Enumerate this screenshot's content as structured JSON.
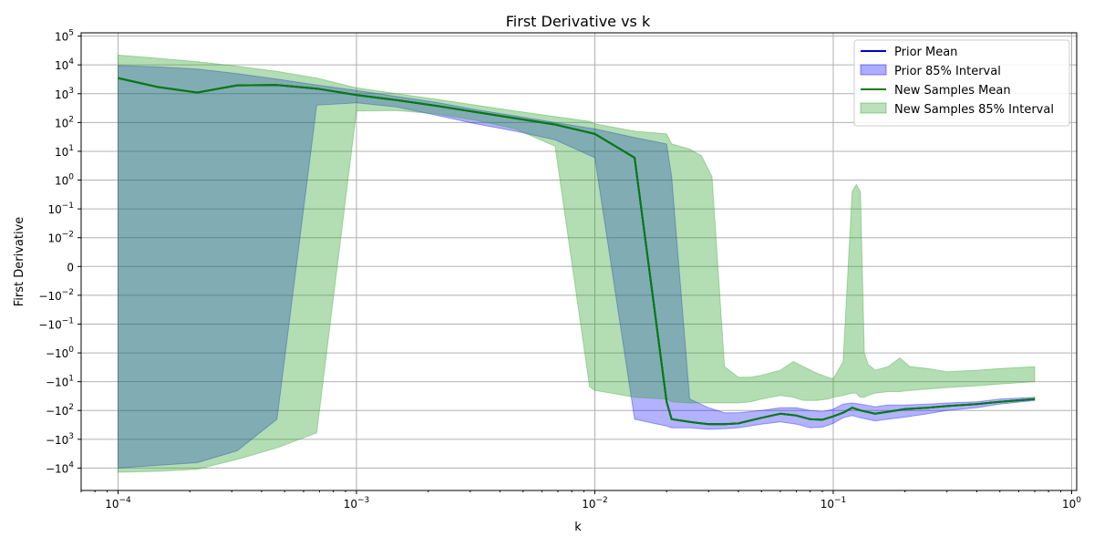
{
  "chart_data": {
    "type": "area",
    "title": "First Derivative vs k",
    "xlabel": "k",
    "ylabel": "First Derivative",
    "xscale": "log",
    "yscale": "symlog",
    "symlog_linthresh": 0.01,
    "xlim": [
      7e-05,
      1.05
    ],
    "ylim": [
      -60000,
      130000
    ],
    "grid": true,
    "legend_position": "top-right",
    "x_ticks": [
      {
        "value": 0.0001,
        "base": "10",
        "exp": "−4"
      },
      {
        "value": 0.001,
        "base": "10",
        "exp": "−3"
      },
      {
        "value": 0.01,
        "base": "10",
        "exp": "−2"
      },
      {
        "value": 0.1,
        "base": "10",
        "exp": "−1"
      },
      {
        "value": 1,
        "base": "10",
        "exp": "0"
      }
    ],
    "y_ticks": [
      {
        "value": 100000,
        "base": "10",
        "exp": "5"
      },
      {
        "value": 10000,
        "base": "10",
        "exp": "4"
      },
      {
        "value": 1000,
        "base": "10",
        "exp": "3"
      },
      {
        "value": 100,
        "base": "10",
        "exp": "2"
      },
      {
        "value": 10,
        "base": "10",
        "exp": "1"
      },
      {
        "value": 1,
        "base": "10",
        "exp": "0"
      },
      {
        "value": 0.1,
        "base": "10",
        "exp": "−1"
      },
      {
        "value": 0.01,
        "base": "10",
        "exp": "−2"
      },
      {
        "value": 0,
        "base": "0",
        "exp": ""
      },
      {
        "value": -0.01,
        "base": "−10",
        "exp": "−2"
      },
      {
        "value": -0.1,
        "base": "−10",
        "exp": "−1"
      },
      {
        "value": -1,
        "base": "−10",
        "exp": "0"
      },
      {
        "value": -10,
        "base": "−10",
        "exp": "1"
      },
      {
        "value": -100,
        "base": "−10",
        "exp": "2"
      },
      {
        "value": -1000,
        "base": "−10",
        "exp": "3"
      },
      {
        "value": -10000,
        "base": "−10",
        "exp": "4"
      }
    ],
    "colors": {
      "prior_line": "#0000cc",
      "prior_fill": "#0000ff",
      "new_line": "#008000",
      "new_fill": "#2ca02c",
      "grid": "#b0b0b0"
    },
    "series": [
      {
        "name": "Prior Mean",
        "kind": "line",
        "color": "#0000cc",
        "x": [
          0.0001,
          0.000147,
          0.000215,
          0.000316,
          0.000464,
          0.000681,
          0.001,
          0.001468,
          0.002154,
          0.003162,
          0.004642,
          0.006813,
          0.01,
          0.01468,
          0.02,
          0.021,
          0.025,
          0.03,
          0.035,
          0.04,
          0.05,
          0.06,
          0.07,
          0.08,
          0.09,
          0.1,
          0.11,
          0.12,
          0.13,
          0.15,
          0.17,
          0.2,
          0.25,
          0.3,
          0.4,
          0.5,
          0.7
        ],
        "y": [
          3500,
          1700,
          1100,
          1950,
          2000,
          1500,
          900,
          600,
          380,
          230,
          140,
          85,
          40,
          6,
          -50,
          -200,
          -250,
          -300,
          -300,
          -280,
          -180,
          -130,
          -150,
          -200,
          -210,
          -160,
          -120,
          -80,
          -100,
          -130,
          -110,
          -90,
          -80,
          -70,
          -60,
          -50,
          -40
        ]
      },
      {
        "name": "Prior 85% Interval",
        "kind": "band",
        "color": "#0000ff",
        "x": [
          0.0001,
          0.000147,
          0.000215,
          0.000316,
          0.000464,
          0.000681,
          0.001,
          0.001468,
          0.002154,
          0.003162,
          0.004642,
          0.006813,
          0.01,
          0.01468,
          0.02,
          0.021,
          0.025,
          0.03,
          0.035,
          0.04,
          0.05,
          0.06,
          0.07,
          0.08,
          0.09,
          0.1,
          0.11,
          0.12,
          0.13,
          0.15,
          0.17,
          0.2,
          0.25,
          0.3,
          0.4,
          0.5,
          0.7
        ],
        "lower": [
          -10000,
          -8000,
          -6500,
          -2500,
          -200,
          400,
          480,
          350,
          180,
          90,
          50,
          25,
          6,
          -200,
          -350,
          -400,
          -400,
          -450,
          -430,
          -400,
          -300,
          -250,
          -300,
          -400,
          -380,
          -280,
          -180,
          -150,
          -180,
          -230,
          -200,
          -170,
          -130,
          -100,
          -80,
          -60,
          -45
        ],
        "upper": [
          9500,
          8500,
          7200,
          5000,
          3200,
          2000,
          1300,
          800,
          500,
          280,
          170,
          100,
          60,
          30,
          18,
          1.3,
          -40,
          -80,
          -120,
          -120,
          -100,
          -80,
          -80,
          -100,
          -110,
          -90,
          -60,
          -55,
          -60,
          -75,
          -65,
          -65,
          -60,
          -55,
          -50,
          -40,
          -35
        ]
      },
      {
        "name": "New Samples Mean",
        "kind": "line",
        "color": "#008000",
        "x": [
          0.0001,
          0.000147,
          0.000215,
          0.000316,
          0.000464,
          0.000681,
          0.001,
          0.001468,
          0.002154,
          0.003162,
          0.004642,
          0.006813,
          0.01,
          0.01468,
          0.02,
          0.021,
          0.025,
          0.03,
          0.035,
          0.04,
          0.05,
          0.06,
          0.07,
          0.08,
          0.09,
          0.1,
          0.11,
          0.12,
          0.13,
          0.15,
          0.17,
          0.2,
          0.25,
          0.3,
          0.4,
          0.5,
          0.7
        ],
        "y": [
          3500,
          1700,
          1100,
          1950,
          2000,
          1500,
          900,
          600,
          380,
          230,
          140,
          85,
          40,
          6,
          -50,
          -200,
          -250,
          -300,
          -300,
          -280,
          -180,
          -130,
          -150,
          -200,
          -210,
          -160,
          -120,
          -80,
          -100,
          -130,
          -110,
          -90,
          -80,
          -70,
          -60,
          -50,
          -40
        ]
      },
      {
        "name": "New Samples 85% Interval",
        "kind": "band",
        "color": "#2ca02c",
        "x": [
          0.0001,
          0.000147,
          0.000215,
          0.000316,
          0.000464,
          0.000681,
          0.001,
          0.001468,
          0.002154,
          0.003162,
          0.004642,
          0.006813,
          0.0095,
          0.01,
          0.01468,
          0.02,
          0.021,
          0.025,
          0.028,
          0.031,
          0.035,
          0.04,
          0.045,
          0.05,
          0.06,
          0.068,
          0.075,
          0.085,
          0.095,
          0.1,
          0.11,
          0.12,
          0.125,
          0.127,
          0.13,
          0.135,
          0.14,
          0.15,
          0.17,
          0.19,
          0.21,
          0.25,
          0.3,
          0.4,
          0.5,
          0.7
        ],
        "lower": [
          -14000,
          -13000,
          -11000,
          -5000,
          -2000,
          -600,
          250,
          260,
          200,
          120,
          60,
          15,
          -15,
          -20,
          -35,
          -40,
          -50,
          -55,
          -55,
          -55,
          -55,
          -55,
          -50,
          -40,
          -30,
          -35,
          -45,
          -45,
          -40,
          -35,
          -30,
          -25,
          -25,
          -30,
          -35,
          -35,
          -30,
          -25,
          -22,
          -22,
          -20,
          -18,
          -16,
          -14,
          -12,
          -10
        ],
        "upper": [
          22000,
          17000,
          13000,
          9000,
          6000,
          3500,
          1600,
          1000,
          650,
          400,
          250,
          160,
          110,
          90,
          50,
          40,
          18,
          12,
          7,
          1.3,
          -3,
          -7,
          -7,
          -6,
          -4,
          -2,
          -3,
          -5,
          -7,
          -8,
          -2,
          0.4,
          0.7,
          0.55,
          0.4,
          -1,
          -2.5,
          -4,
          -3,
          -1.5,
          -3,
          -3.5,
          -4.5,
          -4,
          -3.5,
          -3
        ]
      }
    ]
  }
}
